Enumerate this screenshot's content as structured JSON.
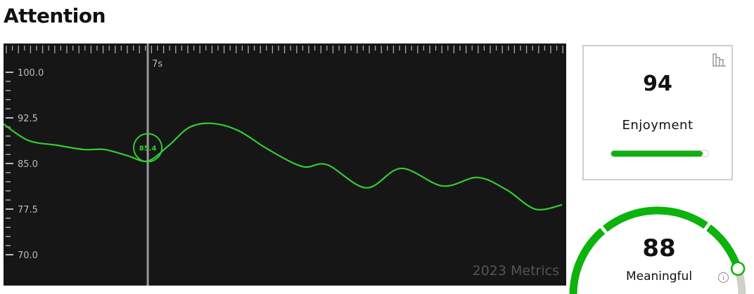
{
  "title": "Attention",
  "chart_data": {
    "type": "line",
    "title": "Attention",
    "xunit": "s",
    "ylim": [
      70,
      100
    ],
    "yticks": [
      "100.0",
      "92.5",
      "85.0",
      "77.5",
      "70.0"
    ],
    "ytick_values": [
      100,
      92.5,
      85,
      77.5,
      70
    ],
    "line_color": "#33cc33",
    "background": "#161616",
    "x": [
      0,
      1.2,
      2.6,
      3.9,
      4.9,
      6.0,
      7.0,
      8.0,
      9.0,
      10.1,
      11.4,
      12.8,
      14.5,
      15.7,
      17.6,
      19.3,
      21.3,
      23.0,
      24.4,
      25.8,
      27.1
    ],
    "values": [
      91.5,
      88.8,
      88.0,
      87.3,
      87.3,
      86.3,
      85.4,
      87.9,
      90.9,
      91.6,
      90.4,
      87.4,
      84.5,
      84.8,
      81.0,
      84.2,
      81.3,
      82.7,
      80.7,
      77.5,
      78.2
    ],
    "cursor": {
      "x": 7,
      "label": "7s",
      "value_label": "85.4"
    },
    "watermark": "2023 Metrics",
    "grid": false
  },
  "enjoyment": {
    "value": "94",
    "label": "Enjoyment",
    "progress": 0.94,
    "icon": "bar-chart-icon"
  },
  "meaningful": {
    "value": "88",
    "label": "Meaningful",
    "progress": 0.88,
    "info_icon": "i"
  },
  "colors": {
    "accent": "#0cb30c",
    "track": "#d0d0c8"
  }
}
